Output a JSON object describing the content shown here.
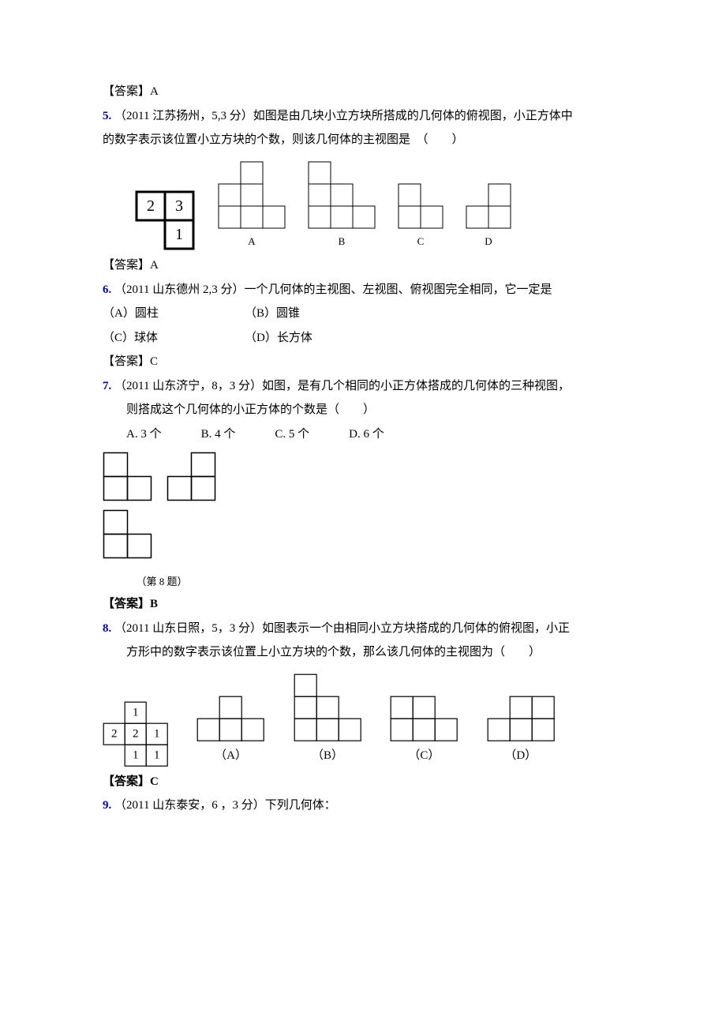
{
  "q4": {
    "answer_label": "【答案】",
    "answer_val": "A"
  },
  "q5": {
    "num": "5.",
    "text1": "（2011 江苏扬州，5,3 分）如图是由几块小立方块所搭成的几何体的俯视图，小正方体中",
    "text2": "的数字表示该位置小立方块的个数，则该几何体的主视图是　（　　）",
    "answer_label": "【答案】",
    "answer_val": "A",
    "labels": [
      "A",
      "B",
      "C",
      "D"
    ],
    "top_numbers": [
      "2",
      "3"
    ],
    "bottom_number": "1",
    "cell": 36,
    "thick_color": "#000",
    "thick_w": 3,
    "thin_w": 1,
    "opt_cell": 28
  },
  "q6": {
    "num": "6.",
    "text": "（2011 山东德州 2,3 分）一个几何体的主视图、左视图、俯视图完全相同，它一定是",
    "opts": [
      "（A）圆柱",
      "（B）圆锥",
      "（C）球体",
      "（D）长方体"
    ],
    "answer_label": "【答案】",
    "answer_val": "C"
  },
  "q7": {
    "num": "7.",
    "text1": "（2011 山东济宁，8，3 分）如图，是有几个相同的小正方体搭成的几何体的三种视图，",
    "text2": "则搭成这个几何体的小正方体的个数是（　　）",
    "opts": [
      "A. 3 个",
      "B. 4 个",
      "C. 5 个",
      "D. 6 个"
    ],
    "answer_label": "【答案】",
    "answer_val": "B",
    "caption": "（第 8 题）",
    "cell": 30,
    "thin_w": 1.5
  },
  "q8": {
    "num": "8.",
    "text1": "（2011 山东日照，5，3 分）如图表示一个由相同小立方块搭成的几何体的俯视图，小正",
    "text2": "方形中的数字表示该位置上小立方块的个数，那么该几何体的主视图为（　　）",
    "answer_label": "【答案】",
    "answer_val": "C",
    "tbl": [
      [
        "",
        "1",
        ""
      ],
      [
        "2",
        "2",
        "1"
      ],
      [
        "",
        "1",
        "1"
      ]
    ],
    "cell": 27,
    "thin_w": 1.2,
    "opt_cell": 28,
    "labels": [
      "（A）",
      "（B）",
      "（C）",
      "（D）"
    ]
  },
  "q9": {
    "num": "9.",
    "text": "（2011 山东泰安，6 ，3 分）下列几何体："
  }
}
